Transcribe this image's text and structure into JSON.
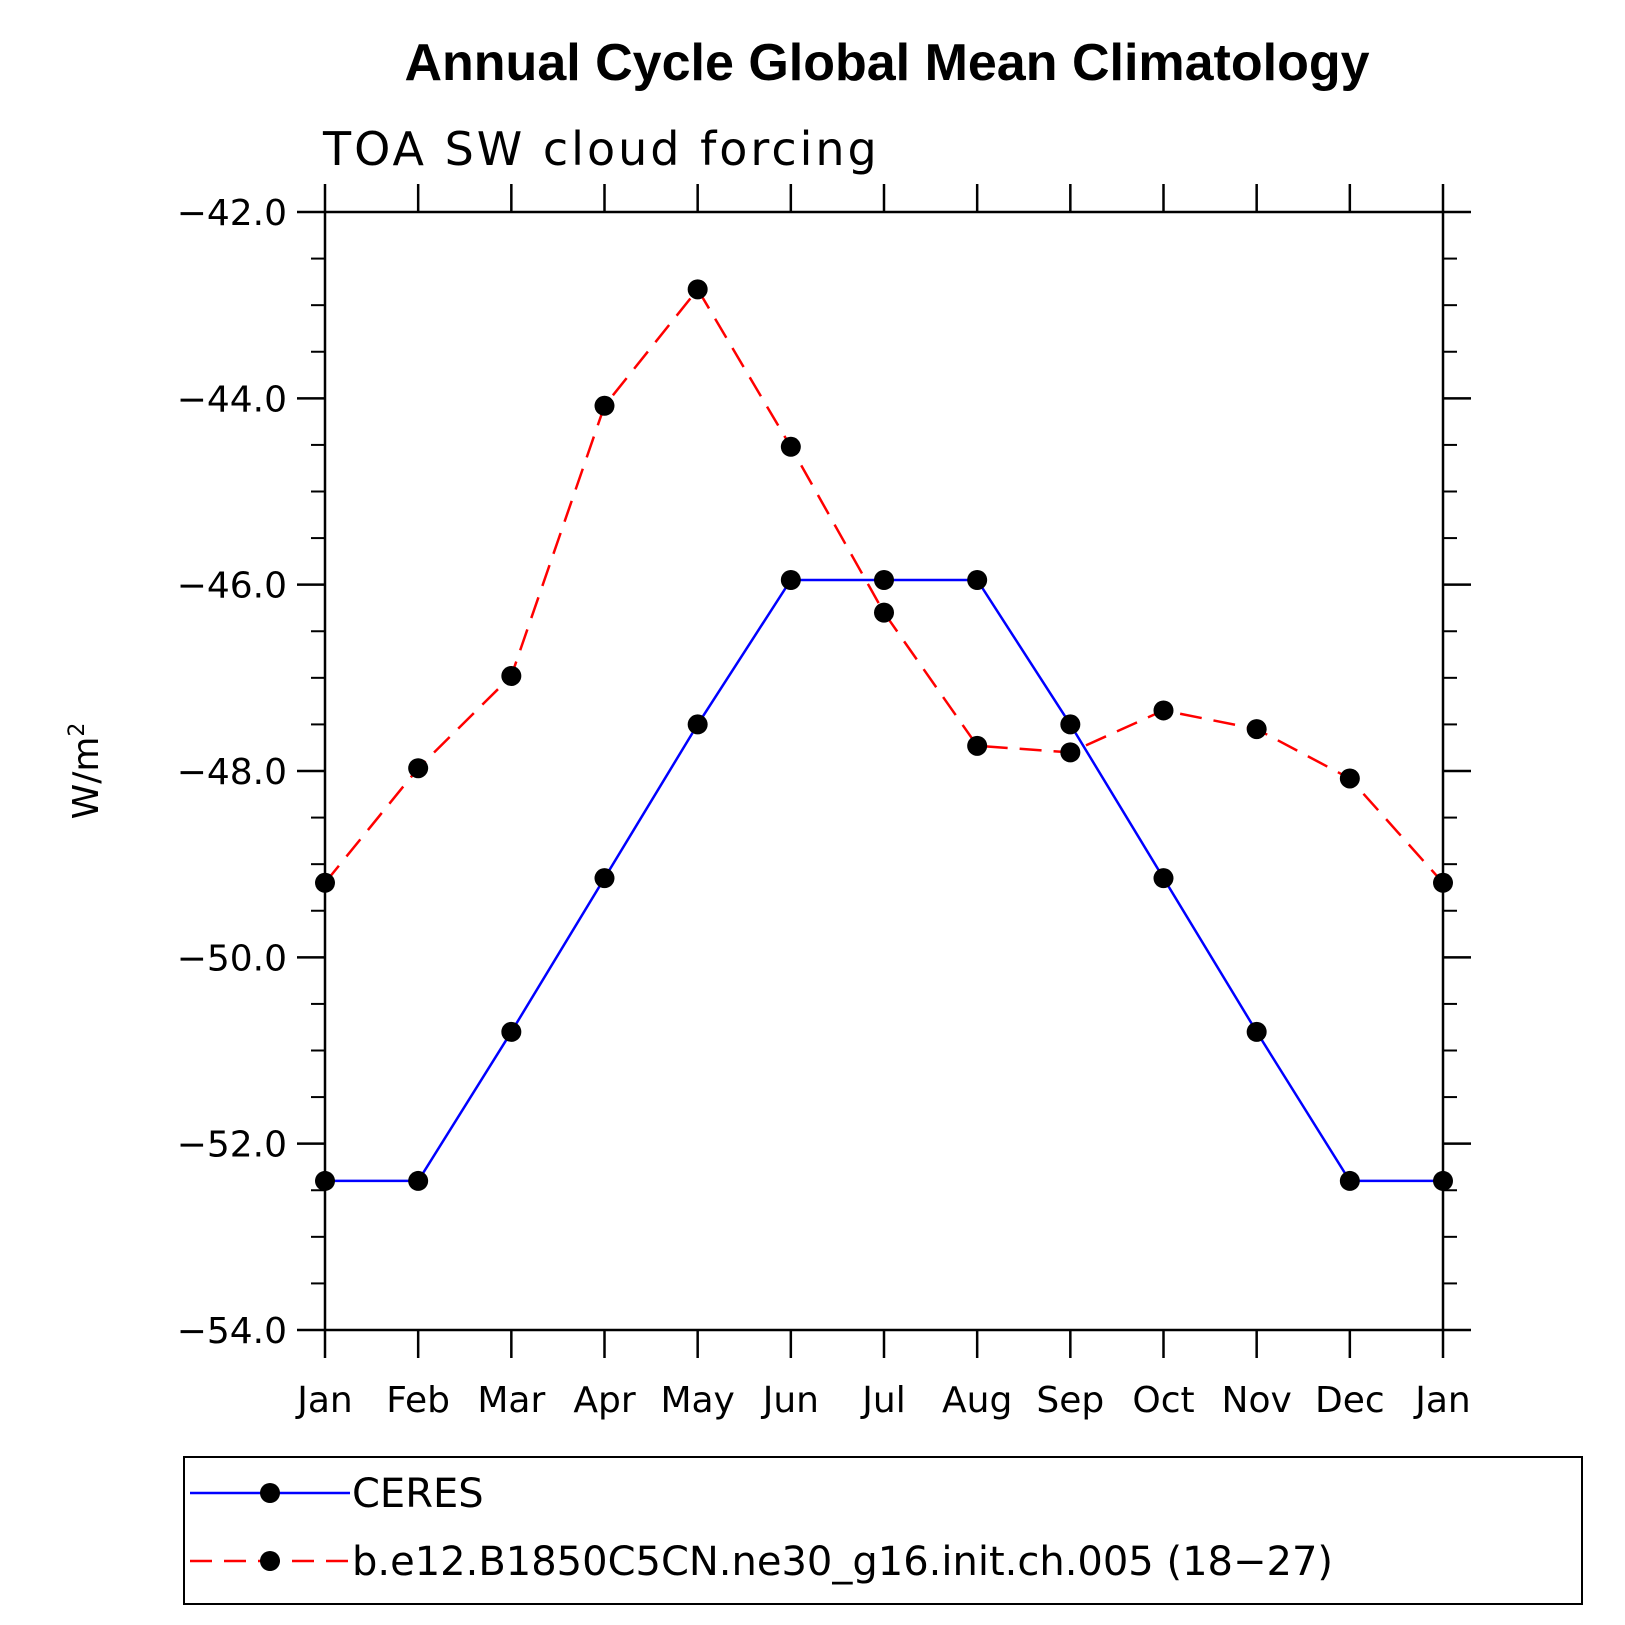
{
  "chart_data": {
    "type": "line",
    "title": "Annual Cycle Global Mean Climatology",
    "subtitle": "TOA SW cloud forcing",
    "ylabel": "W/m",
    "ylabel_superscript": "2",
    "xlabel": "",
    "categories": [
      "Jan",
      "Feb",
      "Mar",
      "Apr",
      "May",
      "Jun",
      "Jul",
      "Aug",
      "Sep",
      "Oct",
      "Nov",
      "Dec",
      "Jan"
    ],
    "ylim": [
      -54.0,
      -42.0
    ],
    "yticks": [
      -54.0,
      -52.0,
      -50.0,
      -48.0,
      -46.0,
      -44.0,
      -42.0
    ],
    "ytick_labels": [
      "−54.0",
      "−52.0",
      "−50.0",
      "−48.0",
      "−46.0",
      "−44.0",
      "−42.0"
    ],
    "grid": false,
    "legend_position": "bottom",
    "series": [
      {
        "name": "CERES",
        "color": "#0000ff",
        "style": "solid",
        "values": [
          -52.4,
          -52.4,
          -50.8,
          -49.15,
          -47.5,
          -45.95,
          -45.95,
          -45.95,
          -47.5,
          -49.15,
          -50.8,
          -52.4,
          -52.4
        ]
      },
      {
        "name": "b.e12.B1850C5CN.ne30_g16.init.ch.005 (18−27)",
        "color": "#ff0000",
        "style": "dashed",
        "values": [
          -49.2,
          -47.97,
          -46.98,
          -44.08,
          -42.83,
          -44.52,
          -46.3,
          -47.73,
          -47.8,
          -47.35,
          -47.55,
          -48.08,
          -49.2
        ]
      }
    ]
  }
}
